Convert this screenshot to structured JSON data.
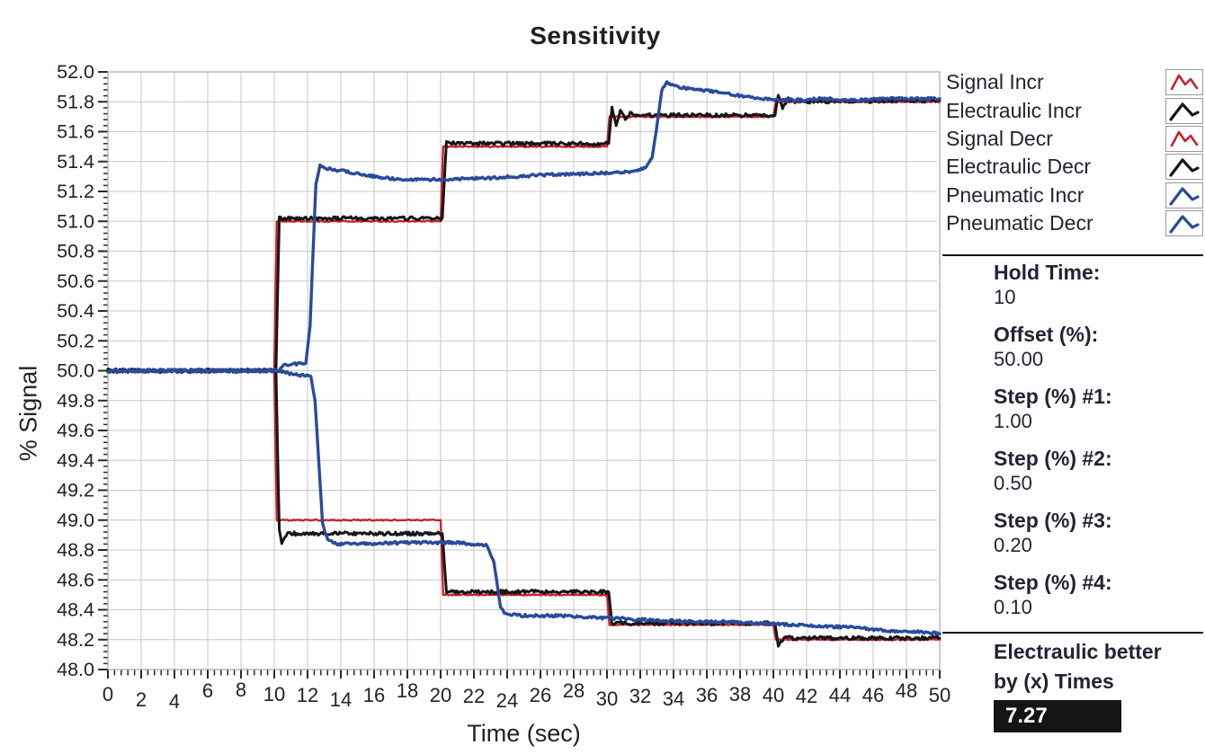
{
  "title": "Sensitivity",
  "colors": {
    "signal": "#c8232a",
    "electraulic": "#161616",
    "pneumatic": "#2a4b9b",
    "grid": "#c7c7c7",
    "plot_border": "#b5b5b5",
    "tick": "#2a2a2a",
    "text": "#232334",
    "result_box_bg": "#141414",
    "result_box_text": "#ffffff"
  },
  "legend": {
    "items": [
      {
        "label": "Signal Incr",
        "icon": "wave-icon",
        "color": "#c8232a"
      },
      {
        "label": "Electraulic Incr",
        "icon": "peak-icon",
        "color": "#161616"
      },
      {
        "label": "Signal Decr",
        "icon": "wave-icon",
        "color": "#c8232a"
      },
      {
        "label": "Electraulic Decr",
        "icon": "peak-icon",
        "color": "#161616"
      },
      {
        "label": "Pneumatic Incr",
        "icon": "peak-icon",
        "color": "#2a4b9b"
      },
      {
        "label": "Pneumatic Decr",
        "icon": "peak-icon",
        "color": "#2a4b9b"
      }
    ]
  },
  "panel": {
    "params": {
      "items": [
        {
          "label": "Hold Time:",
          "value": "10"
        },
        {
          "label": "Offset (%):",
          "value": "50.00"
        },
        {
          "label": "Step (%) #1:",
          "value": "1.00"
        },
        {
          "label": "Step (%) #2:",
          "value": "0.50"
        },
        {
          "label": "Step (%) #3:",
          "value": "0.20"
        },
        {
          "label": "Step (%) #4:",
          "value": "0.10"
        }
      ]
    },
    "result": {
      "line1": "Electraulic better",
      "line2": "by (x) Times",
      "value": "7.27"
    }
  },
  "chart_data": {
    "type": "line",
    "title": "Sensitivity",
    "xlabel": "Time (sec)",
    "ylabel": "% Signal",
    "xlim": [
      0,
      50
    ],
    "ylim": [
      48.0,
      52.0
    ],
    "x_major_step": 2,
    "x_minor_step": 0.4,
    "y_major_step": 0.2,
    "y_minor_step": 0.04,
    "grid": true,
    "legend_position": "right",
    "series": [
      {
        "name": "Signal Incr",
        "color": "#c8232a",
        "width": 2.4,
        "noise": 0.004,
        "points": [
          [
            0,
            50
          ],
          [
            10,
            50
          ],
          [
            10.15,
            51
          ],
          [
            20,
            51
          ],
          [
            20.15,
            51.5
          ],
          [
            30,
            51.5
          ],
          [
            30.15,
            51.7
          ],
          [
            40,
            51.7
          ],
          [
            40.15,
            51.8
          ],
          [
            50,
            51.8
          ]
        ]
      },
      {
        "name": "Electraulic Incr",
        "color": "#161616",
        "width": 3.0,
        "noise": 0.012,
        "points": [
          [
            0,
            50
          ],
          [
            10.1,
            50
          ],
          [
            10.3,
            51.02
          ],
          [
            20.1,
            51.02
          ],
          [
            20.35,
            51.53
          ],
          [
            21,
            51.52
          ],
          [
            30.1,
            51.52
          ],
          [
            30.3,
            51.76
          ],
          [
            30.55,
            51.64
          ],
          [
            30.8,
            51.74
          ],
          [
            31.1,
            51.69
          ],
          [
            31.4,
            51.72
          ],
          [
            32,
            51.71
          ],
          [
            40.1,
            51.71
          ],
          [
            40.3,
            51.85
          ],
          [
            40.55,
            51.76
          ],
          [
            40.9,
            51.82
          ],
          [
            41.3,
            51.8
          ],
          [
            50,
            51.81
          ]
        ]
      },
      {
        "name": "Signal Decr",
        "color": "#c8232a",
        "width": 2.4,
        "noise": 0.004,
        "points": [
          [
            0,
            50
          ],
          [
            10,
            50
          ],
          [
            10.15,
            49
          ],
          [
            20,
            49
          ],
          [
            20.15,
            48.5
          ],
          [
            30,
            48.5
          ],
          [
            30.15,
            48.3
          ],
          [
            40,
            48.3
          ],
          [
            40.15,
            48.2
          ],
          [
            50,
            48.2
          ]
        ]
      },
      {
        "name": "Electraulic Decr",
        "color": "#161616",
        "width": 3.0,
        "noise": 0.012,
        "points": [
          [
            0,
            50
          ],
          [
            10.1,
            50
          ],
          [
            10.3,
            48.93
          ],
          [
            10.45,
            48.85
          ],
          [
            10.8,
            48.91
          ],
          [
            20.1,
            48.91
          ],
          [
            20.35,
            48.52
          ],
          [
            30.1,
            48.52
          ],
          [
            30.3,
            48.31
          ],
          [
            40.1,
            48.31
          ],
          [
            40.3,
            48.16
          ],
          [
            40.7,
            48.22
          ],
          [
            41.2,
            48.21
          ],
          [
            50,
            48.21
          ]
        ]
      },
      {
        "name": "Pneumatic Incr",
        "color": "#2a4b9b",
        "width": 3.4,
        "noise": 0.009,
        "points": [
          [
            0,
            50
          ],
          [
            10.3,
            50
          ],
          [
            10.6,
            50.04
          ],
          [
            11.9,
            50.05
          ],
          [
            12.15,
            50.3
          ],
          [
            12.5,
            51.25
          ],
          [
            12.75,
            51.37
          ],
          [
            13.3,
            51.35
          ],
          [
            14.5,
            51.33
          ],
          [
            16,
            51.3
          ],
          [
            17.5,
            51.28
          ],
          [
            20,
            51.28
          ],
          [
            23,
            51.29
          ],
          [
            26,
            51.31
          ],
          [
            29,
            51.32
          ],
          [
            31.5,
            51.33
          ],
          [
            32.3,
            51.36
          ],
          [
            32.7,
            51.42
          ],
          [
            32.95,
            51.6
          ],
          [
            33.3,
            51.88
          ],
          [
            33.6,
            51.93
          ],
          [
            34.2,
            51.9
          ],
          [
            35.5,
            51.88
          ],
          [
            37,
            51.86
          ],
          [
            38.5,
            51.83
          ],
          [
            39.5,
            51.82
          ],
          [
            41,
            51.81
          ],
          [
            43,
            51.82
          ],
          [
            45,
            51.81
          ],
          [
            47,
            51.82
          ],
          [
            50,
            51.82
          ]
        ]
      },
      {
        "name": "Pneumatic Decr",
        "color": "#2a4b9b",
        "width": 3.4,
        "noise": 0.009,
        "points": [
          [
            0,
            50
          ],
          [
            10.3,
            50
          ],
          [
            11,
            49.98
          ],
          [
            12.2,
            49.96
          ],
          [
            12.45,
            49.8
          ],
          [
            12.9,
            48.98
          ],
          [
            13.2,
            48.87
          ],
          [
            13.8,
            48.84
          ],
          [
            15,
            48.84
          ],
          [
            18,
            48.85
          ],
          [
            21,
            48.85
          ],
          [
            22.8,
            48.83
          ],
          [
            23.2,
            48.72
          ],
          [
            23.6,
            48.42
          ],
          [
            23.9,
            48.37
          ],
          [
            25,
            48.36
          ],
          [
            27,
            48.36
          ],
          [
            29,
            48.35
          ],
          [
            31,
            48.34
          ],
          [
            33,
            48.33
          ],
          [
            35,
            48.32
          ],
          [
            37,
            48.32
          ],
          [
            39,
            48.31
          ],
          [
            41,
            48.3
          ],
          [
            43,
            48.29
          ],
          [
            45,
            48.28
          ],
          [
            47,
            48.26
          ],
          [
            49,
            48.25
          ],
          [
            50,
            48.24
          ]
        ]
      }
    ]
  }
}
